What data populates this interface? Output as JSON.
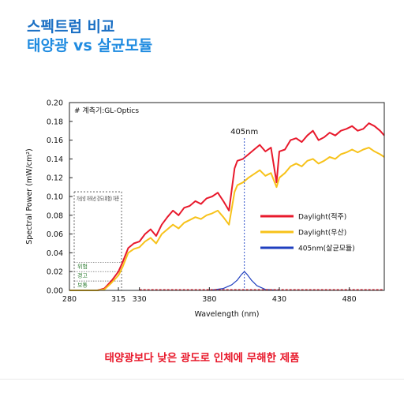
{
  "header": {
    "title_line1": "스펙트럼 비교",
    "title_line2": "태양광 vs 살균모듈"
  },
  "footer": {
    "caption": "태양광보다 낮은 광도로 인체에 무해한 제품"
  },
  "colors": {
    "title_dark_blue": "#1a6fc4",
    "title_blue": "#1f8be0",
    "caption_red": "#e8182a",
    "series_red": "#e8192c",
    "series_yellow": "#f7c21a",
    "series_blue": "#1f3fbf",
    "marker_dotted_blue": "#3355cc"
  },
  "chart_data": {
    "type": "line",
    "xlabel": "Wavelength (nm)",
    "ylabel": "Spectral Power (mW/cm²)",
    "xlim": [
      280,
      505
    ],
    "ylim": [
      0,
      0.2
    ],
    "xticks": [
      280,
      315,
      330,
      380,
      430,
      480
    ],
    "yticks": [
      "0.00",
      "0.02",
      "0.04",
      "0.06",
      "0.08",
      "0.10",
      "0.12",
      "0.14",
      "0.16",
      "0.18",
      "0.20"
    ],
    "source_note": "# 계측기:GL-Optics",
    "marker": {
      "x": 405,
      "label": "405nm"
    },
    "reference_box": {
      "x_start": 280,
      "x_end": 315,
      "y_top": 0.105,
      "title": "가상성 자외선 강도(위험) 차준",
      "levels": [
        {
          "label": "위험",
          "y": 0.03
        },
        {
          "label": "경고",
          "y": 0.02
        },
        {
          "label": "보통",
          "y": 0.01
        }
      ]
    },
    "legend_position": "right",
    "series": [
      {
        "name": "Daylight(적주)",
        "color": "#e8192c",
        "x": [
          280,
          300,
          305,
          310,
          315,
          318,
          322,
          326,
          330,
          334,
          338,
          342,
          346,
          350,
          354,
          358,
          362,
          366,
          370,
          374,
          378,
          382,
          386,
          390,
          394,
          398,
          400,
          404,
          408,
          412,
          416,
          420,
          424,
          428,
          430,
          434,
          438,
          442,
          446,
          450,
          454,
          458,
          462,
          466,
          470,
          474,
          478,
          482,
          486,
          490,
          494,
          498,
          502,
          505
        ],
        "y": [
          0,
          0,
          0.002,
          0.01,
          0.02,
          0.03,
          0.045,
          0.05,
          0.052,
          0.06,
          0.065,
          0.058,
          0.07,
          0.078,
          0.085,
          0.08,
          0.088,
          0.09,
          0.095,
          0.092,
          0.098,
          0.1,
          0.104,
          0.095,
          0.085,
          0.13,
          0.138,
          0.14,
          0.145,
          0.15,
          0.155,
          0.148,
          0.152,
          0.115,
          0.148,
          0.15,
          0.16,
          0.162,
          0.158,
          0.165,
          0.17,
          0.16,
          0.163,
          0.168,
          0.165,
          0.17,
          0.172,
          0.175,
          0.17,
          0.172,
          0.178,
          0.175,
          0.17,
          0.165
        ]
      },
      {
        "name": "Daylight(우산)",
        "color": "#f7c21a",
        "x": [
          280,
          300,
          305,
          310,
          315,
          318,
          322,
          326,
          330,
          334,
          338,
          342,
          346,
          350,
          354,
          358,
          362,
          366,
          370,
          374,
          378,
          382,
          386,
          390,
          394,
          398,
          400,
          404,
          408,
          412,
          416,
          420,
          424,
          428,
          430,
          434,
          438,
          442,
          446,
          450,
          454,
          458,
          462,
          466,
          470,
          474,
          478,
          482,
          486,
          490,
          494,
          498,
          502,
          505
        ],
        "y": [
          0,
          0,
          0.001,
          0.008,
          0.016,
          0.025,
          0.04,
          0.044,
          0.046,
          0.052,
          0.056,
          0.05,
          0.06,
          0.065,
          0.07,
          0.066,
          0.072,
          0.075,
          0.078,
          0.076,
          0.08,
          0.082,
          0.085,
          0.078,
          0.07,
          0.105,
          0.112,
          0.115,
          0.12,
          0.124,
          0.128,
          0.122,
          0.125,
          0.11,
          0.12,
          0.125,
          0.132,
          0.135,
          0.132,
          0.138,
          0.14,
          0.135,
          0.138,
          0.142,
          0.14,
          0.145,
          0.147,
          0.15,
          0.147,
          0.15,
          0.152,
          0.148,
          0.145,
          0.142
        ]
      },
      {
        "name": "405nm(살균모듈)",
        "color": "#1f3fbf",
        "x": [
          380,
          390,
          396,
          400,
          403,
          405,
          407,
          410,
          414,
          420,
          430
        ],
        "y": [
          0,
          0.002,
          0.006,
          0.011,
          0.017,
          0.02,
          0.017,
          0.011,
          0.005,
          0.001,
          0
        ]
      }
    ]
  }
}
